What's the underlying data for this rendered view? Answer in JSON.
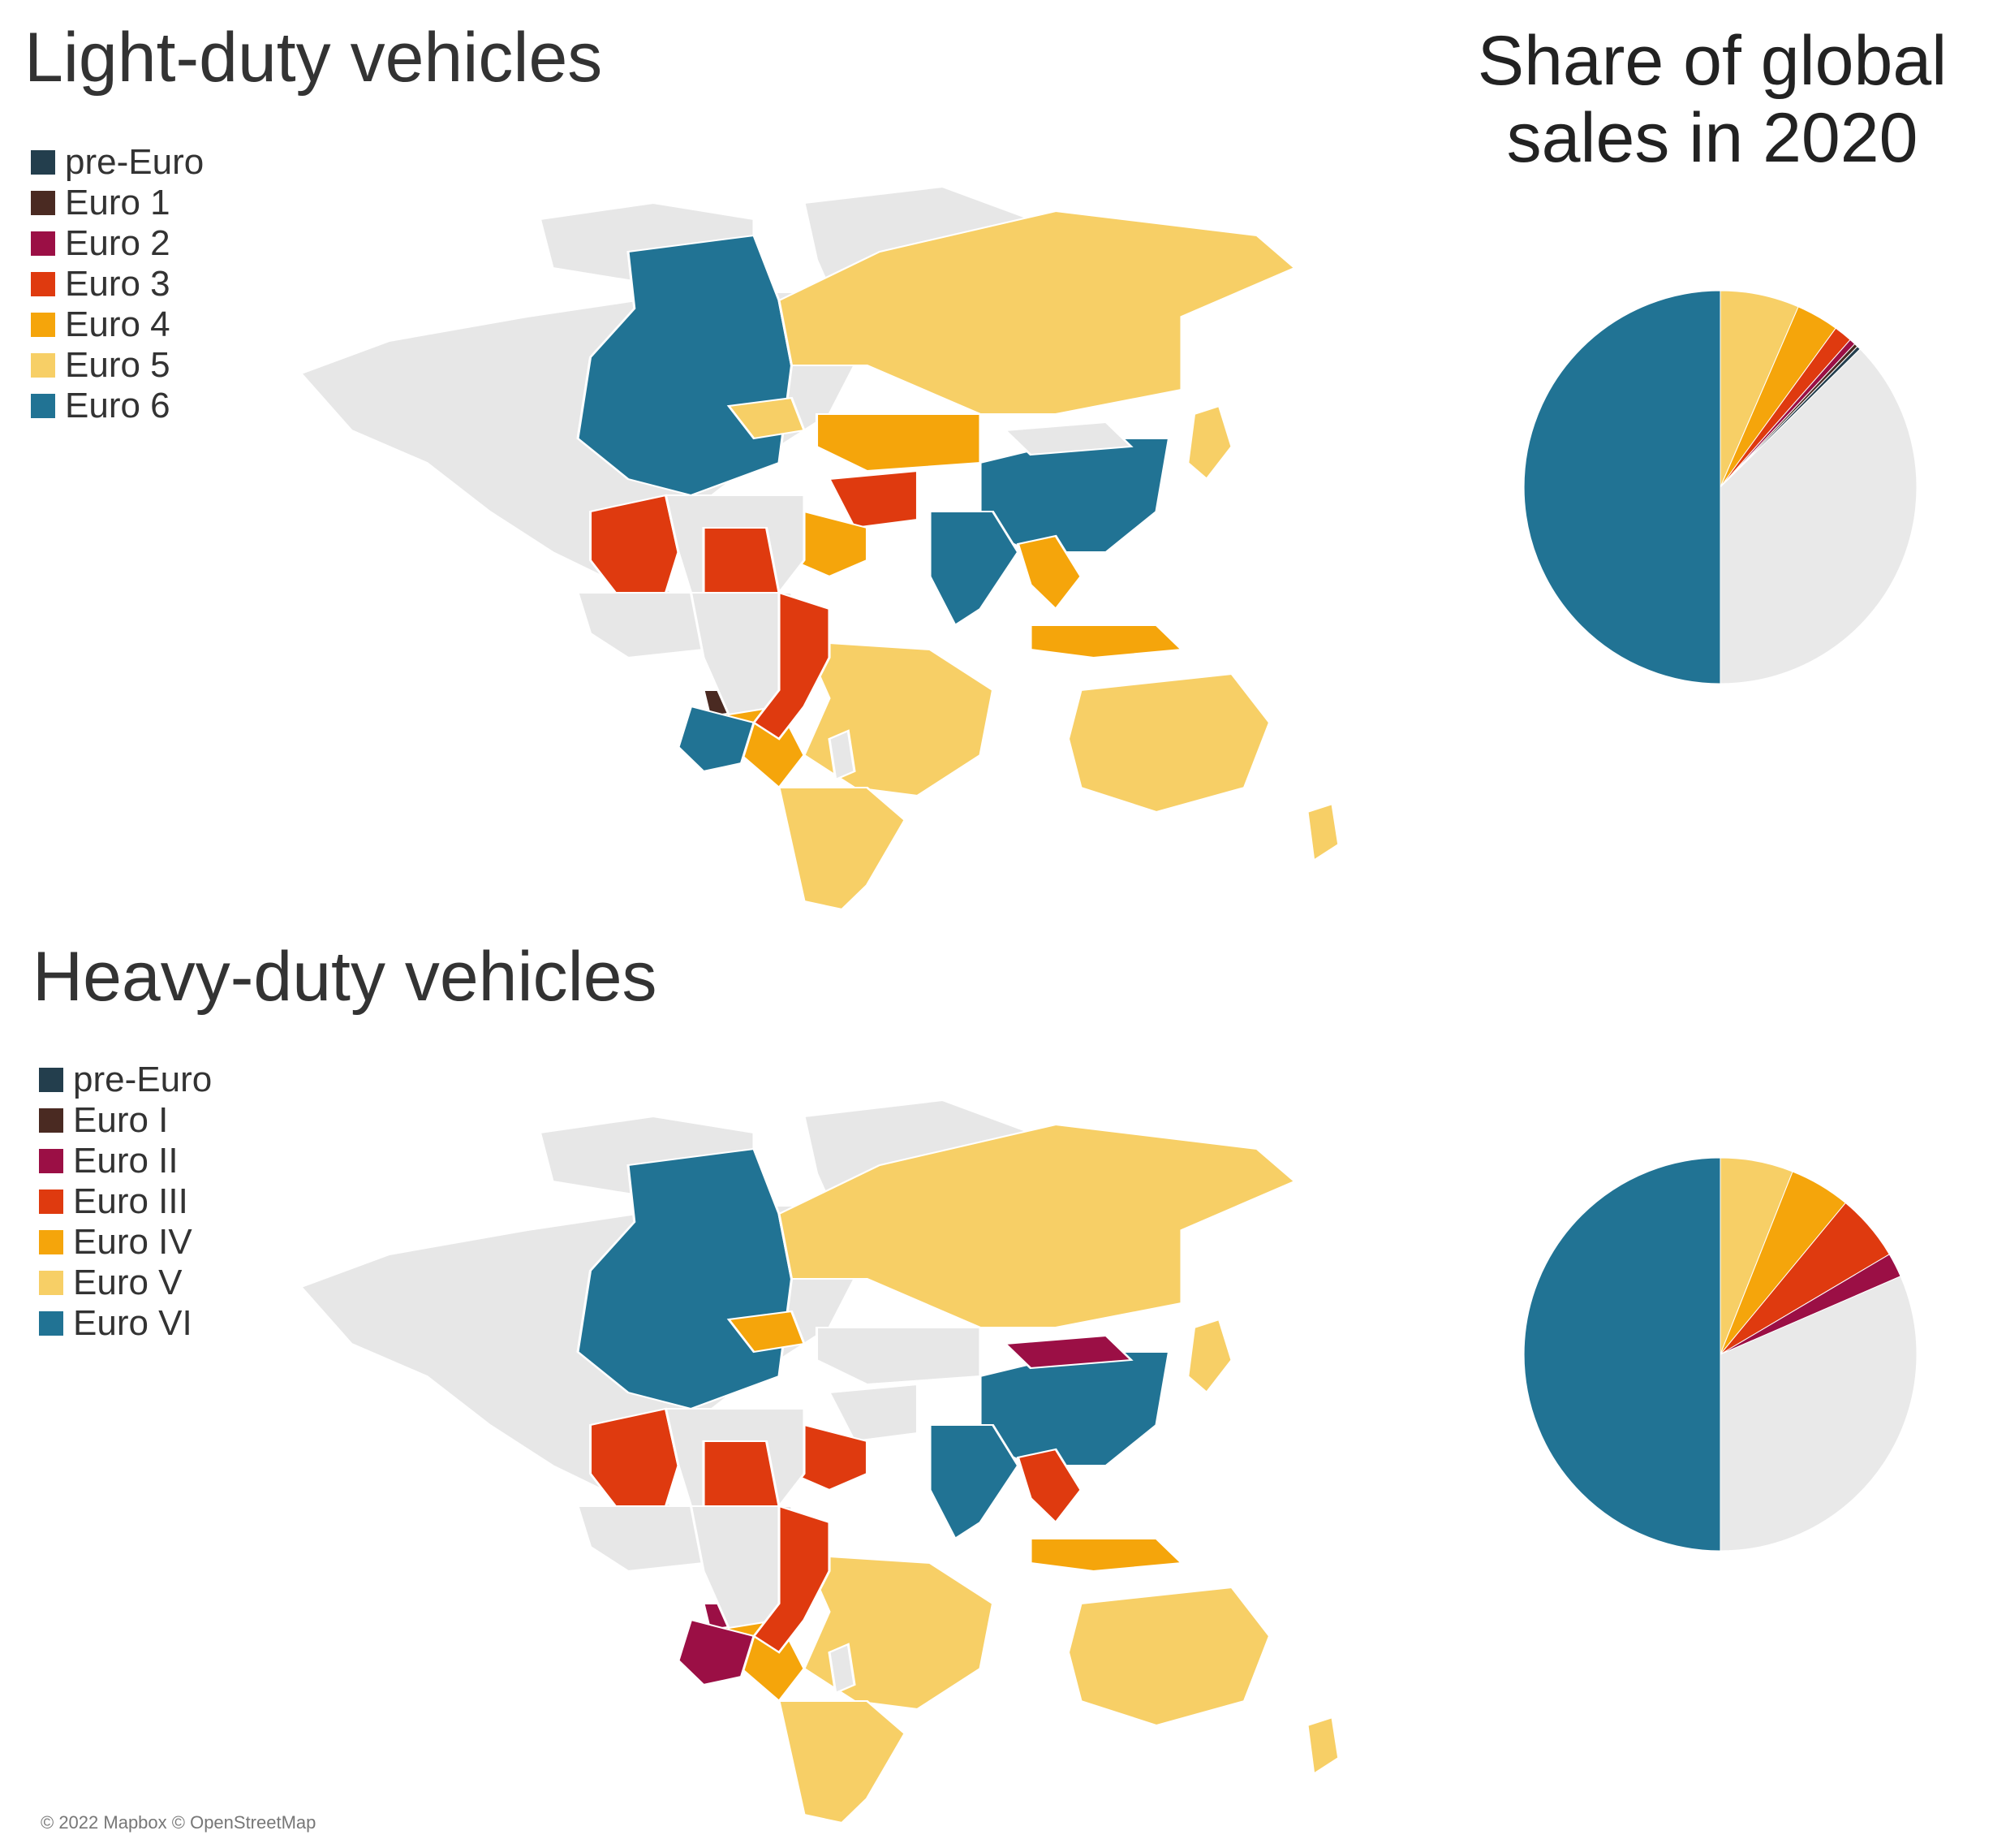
{
  "share_title": "Share of global sales in 2020",
  "panels": {
    "ldv": {
      "title": "Light-duty vehicles",
      "legend": [
        {
          "label": "pre-Euro",
          "color": "#233e4d"
        },
        {
          "label": "Euro 1",
          "color": "#4a2a22"
        },
        {
          "label": "Euro 2",
          "color": "#9b0f45"
        },
        {
          "label": "Euro 3",
          "color": "#df3a0f"
        },
        {
          "label": "Euro 4",
          "color": "#f5a50b"
        },
        {
          "label": "Euro 5",
          "color": "#f7cf66"
        },
        {
          "label": "Euro 6",
          "color": "#217394"
        }
      ]
    },
    "hdv": {
      "title": "Heavy-duty vehicles",
      "legend": [
        {
          "label": "pre-Euro",
          "color": "#233e4d"
        },
        {
          "label": "Euro I",
          "color": "#4a2a22"
        },
        {
          "label": "Euro II",
          "color": "#9b0f45"
        },
        {
          "label": "Euro III",
          "color": "#df3a0f"
        },
        {
          "label": "Euro IV",
          "color": "#f5a50b"
        },
        {
          "label": "Euro V",
          "color": "#f7cf66"
        },
        {
          "label": "Euro VI",
          "color": "#217394"
        }
      ]
    }
  },
  "map_colors": {
    "no_data": "#e7e7e7"
  },
  "chart_data": [
    {
      "type": "pie",
      "slices": [
        {
          "label": "Euro 6",
          "value": 50.0,
          "color": "#217394"
        },
        {
          "label": "Euro 5",
          "value": 6.5,
          "color": "#f7cf66"
        },
        {
          "label": "Euro 4",
          "value": 3.5,
          "color": "#f5a50b"
        },
        {
          "label": "Euro 3",
          "value": 1.5,
          "color": "#df3a0f"
        },
        {
          "label": "Euro 2",
          "value": 0.5,
          "color": "#9b0f45"
        },
        {
          "label": "Euro 1",
          "value": 0.3,
          "color": "#4a2a22"
        },
        {
          "label": "pre-Euro",
          "value": 0.3,
          "color": "#233e4d"
        },
        {
          "label": "",
          "value": 37.4,
          "color": "#e9e9e9"
        }
      ]
    },
    {
      "type": "pie",
      "slices": [
        {
          "label": "Euro VI",
          "value": 50.0,
          "color": "#217394"
        },
        {
          "label": "Euro V",
          "value": 6.0,
          "color": "#f7cf66"
        },
        {
          "label": "Euro IV",
          "value": 5.0,
          "color": "#f5a50b"
        },
        {
          "label": "Euro III",
          "value": 5.5,
          "color": "#df3a0f"
        },
        {
          "label": "Euro II",
          "value": 2.0,
          "color": "#9b0f45"
        },
        {
          "label": "",
          "value": 31.5,
          "color": "#e9e9e9"
        }
      ]
    }
  ],
  "credit": "© 2022 Mapbox © OpenStreetMap"
}
